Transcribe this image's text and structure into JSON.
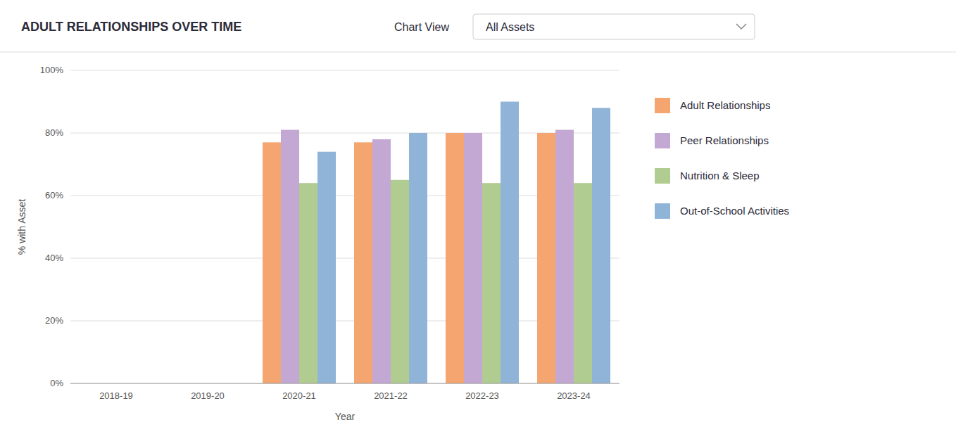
{
  "chart_data": {
    "type": "bar",
    "title": "ADULT RELATIONSHIPS OVER TIME",
    "annotations": [
      "Chart View",
      "All Assets"
    ],
    "xlabel": "Year",
    "ylabel": "% with Asset",
    "categories": [
      "2018-19",
      "2019-20",
      "2020-21",
      "2021-22",
      "2022-23",
      "2023-24"
    ],
    "series": [
      {
        "name": "Adult Relationships",
        "color": "#F4A570",
        "values": [
          null,
          null,
          77,
          77,
          80,
          80
        ]
      },
      {
        "name": "Peer Relationships",
        "color": "#C4A8D4",
        "values": [
          null,
          null,
          81,
          78,
          80,
          81
        ]
      },
      {
        "name": "Nutrition & Sleep",
        "color": "#B0CC90",
        "values": [
          null,
          null,
          64,
          65,
          64,
          64
        ]
      },
      {
        "name": "Out-of-School Activities",
        "color": "#90B4D8",
        "values": [
          null,
          null,
          74,
          80,
          90,
          88
        ]
      }
    ],
    "ylim": [
      0,
      100
    ],
    "yticks": [
      {
        "value": 0,
        "label": "0%"
      },
      {
        "value": 20,
        "label": "20%"
      },
      {
        "value": 40,
        "label": "40%"
      },
      {
        "value": 60,
        "label": "60%"
      },
      {
        "value": 80,
        "label": "80%"
      },
      {
        "value": 100,
        "label": "100%"
      }
    ],
    "grid": true,
    "legend": "right"
  }
}
